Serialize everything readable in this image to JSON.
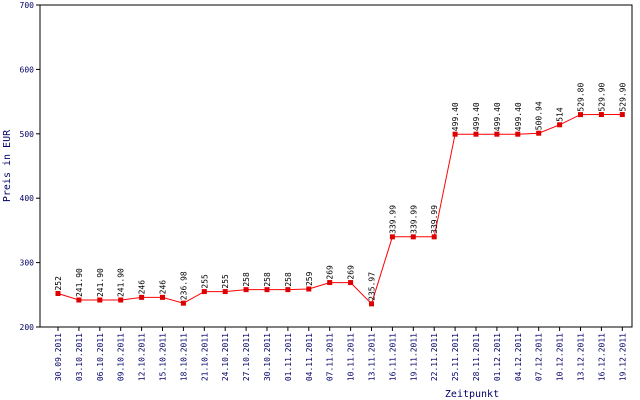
{
  "chart_data": {
    "type": "line",
    "xlabel": "Zeitpunkt",
    "ylabel": "Preis in EUR",
    "ylim": [
      200,
      700
    ],
    "yticks": [
      200,
      300,
      400,
      500,
      600,
      700
    ],
    "grid": false,
    "categories": [
      "30.09.2011",
      "03.10.2011",
      "06.10.2011",
      "09.10.2011",
      "12.10.2011",
      "15.10.2011",
      "18.10.2011",
      "21.10.2011",
      "24.10.2011",
      "27.10.2011",
      "30.10.2011",
      "01.11.2011",
      "04.11.2011",
      "07.11.2011",
      "10.11.2011",
      "13.11.2011",
      "16.11.2011",
      "19.11.2011",
      "22.11.2011",
      "25.11.2011",
      "28.11.2011",
      "01.12.2011",
      "04.12.2011",
      "07.12.2011",
      "10.12.2011",
      "13.12.2011",
      "16.12.2011",
      "19.12.2011"
    ],
    "values": [
      252,
      241.9,
      241.9,
      241.9,
      246,
      246,
      236.98,
      255,
      255,
      258,
      258,
      258,
      259,
      269,
      269,
      235.97,
      339.99,
      339.99,
      339.99,
      499.4,
      499.4,
      499.4,
      499.4,
      500.94,
      514,
      529.8,
      529.9,
      529.9
    ],
    "value_labels": [
      "252",
      "241.90",
      "241.90",
      "241.90",
      "246",
      "246",
      "236.98",
      "255",
      "255",
      "258",
      "258",
      "258",
      "259",
      "269",
      "269",
      "235.97",
      "339.99",
      "339.99",
      "339.99",
      "499.40",
      "499.40",
      "499.40",
      "499.40",
      "500.94",
      "514",
      "529.80",
      "529.90",
      "529.90"
    ],
    "colors": {
      "line": "#ff0000",
      "marker": "#dd0000",
      "axis": "#000000",
      "label": "#000066"
    }
  }
}
